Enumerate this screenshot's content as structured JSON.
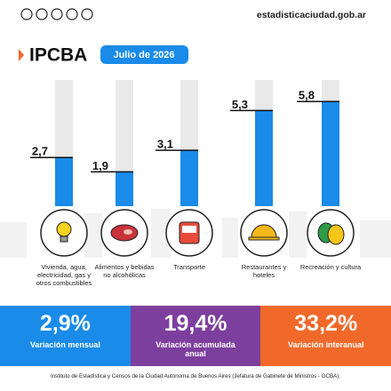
{
  "header": {
    "website": "estadisticaciudad.gob.ar",
    "title": "IPCBA",
    "period": "Julio de 2026"
  },
  "chart_data": {
    "type": "bar",
    "categories": [
      "Vivienda, agua, electricidad, gas y otros combustibles",
      "Alimentos y bebidas no alcohólicas",
      "Transporte",
      "Restaurantes y hoteles",
      "Recreación y cultura"
    ],
    "values": [
      2.7,
      1.9,
      3.1,
      5.3,
      5.8
    ],
    "value_labels": [
      "2,7",
      "1,9",
      "3,1",
      "5,3",
      "5,8"
    ],
    "color": "#1a8be8"
  },
  "cards": [
    {
      "value": "2,9%",
      "label": "Variación mensual",
      "color": "#1a8be8"
    },
    {
      "value": "19,4%",
      "label": "Variación acumulada anual",
      "color": "#7d3f9e"
    },
    {
      "value": "33,2%",
      "label": "Variación interanual",
      "color": "#f0692a"
    }
  ],
  "footer": "Instituto de Estadística y Censos de la Ciudad Autónoma de Buenos Aires (Jefatura de Gabinete de Ministros - GCBA)."
}
